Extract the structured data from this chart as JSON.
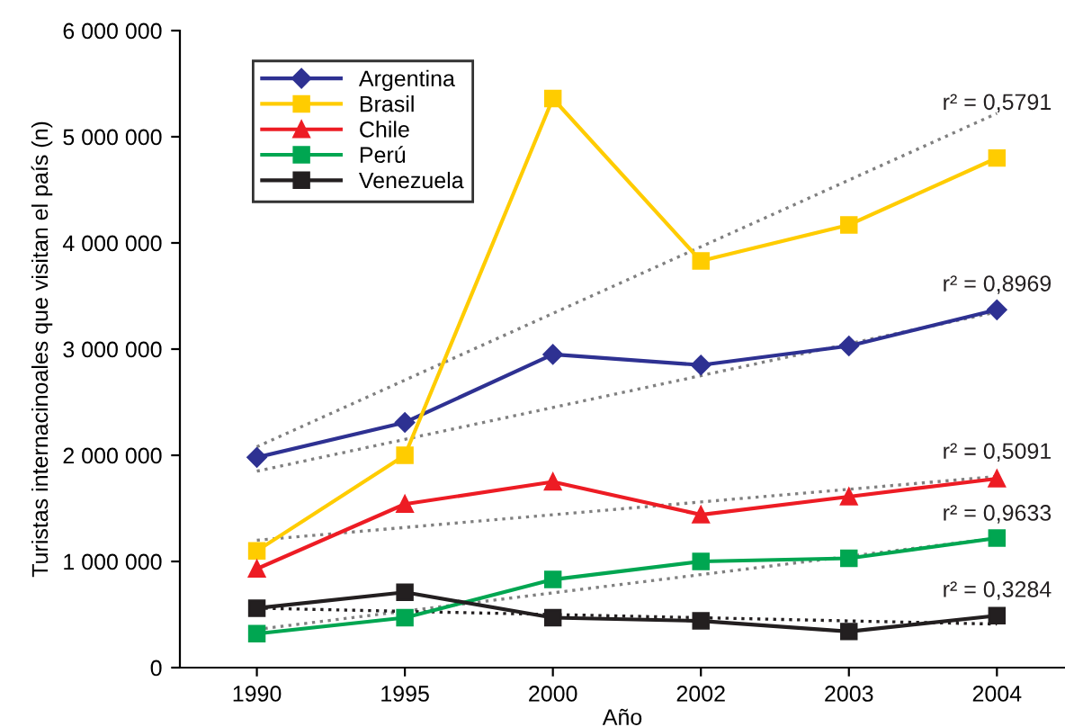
{
  "chart_data": {
    "type": "line",
    "xlabel": "Año",
    "ylabel": "Turistas internacinoales que visitan el país (n)",
    "categories": [
      "1990",
      "1995",
      "2000",
      "2002",
      "2003",
      "2004"
    ],
    "ylim": [
      0,
      6000000
    ],
    "yticks": [
      {
        "value": 0,
        "label": "0"
      },
      {
        "value": 1000000,
        "label": "1 000 000"
      },
      {
        "value": 2000000,
        "label": "2 000 000"
      },
      {
        "value": 3000000,
        "label": "3 000 000"
      },
      {
        "value": 4000000,
        "label": "4 000 000"
      },
      {
        "value": 5000000,
        "label": "5 000 000"
      },
      {
        "value": 6000000,
        "label": "6 000 000"
      }
    ],
    "grid": false,
    "legend": "top left",
    "series": [
      {
        "name": "Argentina",
        "color": "#2e3192",
        "marker": "diamond",
        "values": [
          1980000,
          2310000,
          2950000,
          2850000,
          3030000,
          3370000
        ]
      },
      {
        "name": "Brasil",
        "color": "#ffcc00",
        "marker": "square",
        "values": [
          1100000,
          2000000,
          5360000,
          3830000,
          4170000,
          4800000
        ]
      },
      {
        "name": "Chile",
        "color": "#ed1c24",
        "marker": "triangle",
        "values": [
          930000,
          1540000,
          1750000,
          1440000,
          1610000,
          1780000
        ]
      },
      {
        "name": "Perú",
        "color": "#00a651",
        "marker": "square",
        "values": [
          320000,
          470000,
          830000,
          1000000,
          1030000,
          1220000
        ]
      },
      {
        "name": "Venezuela",
        "color": "#231f20",
        "marker": "square",
        "values": [
          560000,
          710000,
          470000,
          440000,
          340000,
          490000
        ]
      },
      {
        "type": "line",
        "color": "#808080",
        "marker": "none",
        "line_style": "dotted",
        "values": [
          1850000,
          2150000,
          2450000,
          2750000,
          3050000,
          3350000
        ]
      },
      {
        "type": "line",
        "color": "#808080",
        "marker": "none",
        "line_style": "dotted",
        "values": [
          2080000,
          2708000,
          3336000,
          3964000,
          4592000,
          5220000
        ]
      },
      {
        "type": "line",
        "color": "#808080",
        "marker": "none",
        "line_style": "dotted",
        "values": [
          1200000,
          1320000,
          1440000,
          1560000,
          1680000,
          1800000
        ]
      },
      {
        "type": "line",
        "color": "#808080",
        "marker": "none",
        "line_style": "dotted",
        "values": [
          360000,
          532000,
          704000,
          876000,
          1048000,
          1220000
        ]
      },
      {
        "type": "line",
        "color": "#231f20",
        "marker": "none",
        "line_style": "dotted",
        "values": [
          560000,
          530000,
          500000,
          470000,
          440000,
          410000
        ]
      }
    ],
    "annotations": [
      "r² = 0,5791",
      "r² = 0,8969",
      "r² = 0,5091",
      "r² = 0,9633",
      "r² = 0,3284"
    ]
  }
}
